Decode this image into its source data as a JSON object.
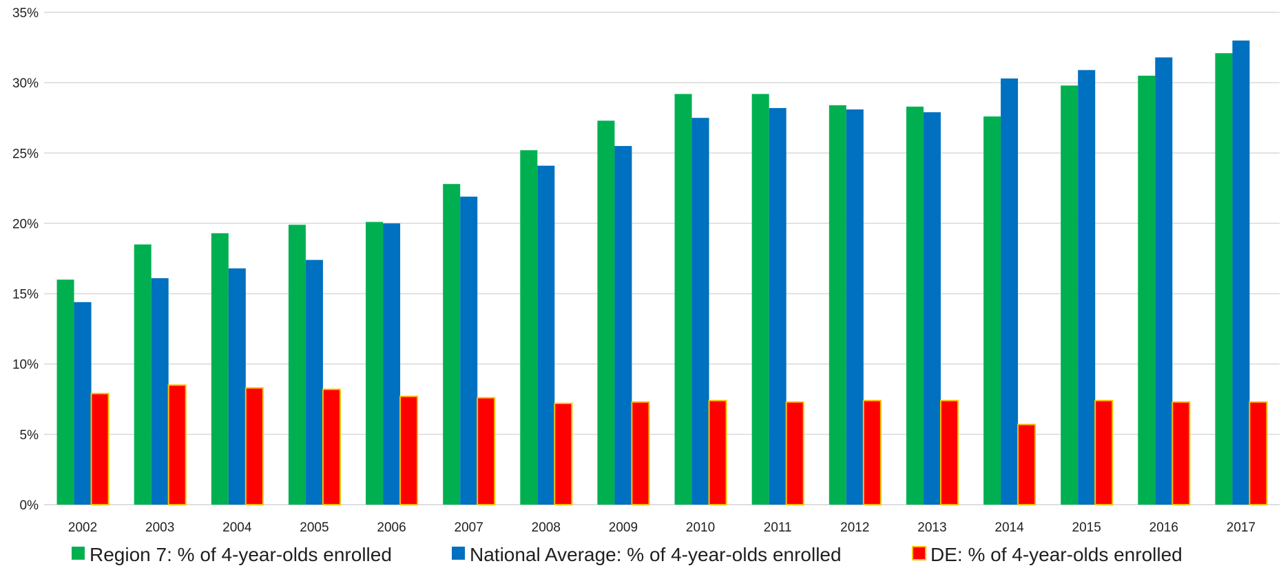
{
  "chart_data": {
    "type": "bar",
    "title": "",
    "xlabel": "",
    "ylabel": "",
    "categories": [
      "2002",
      "2003",
      "2004",
      "2005",
      "2006",
      "2007",
      "2008",
      "2009",
      "2010",
      "2011",
      "2012",
      "2013",
      "2014",
      "2015",
      "2016",
      "2017"
    ],
    "series": [
      {
        "name": "Region 7: % of 4-year-olds enrolled",
        "color": "#00b050",
        "values": [
          16.0,
          18.5,
          19.3,
          19.9,
          20.1,
          22.8,
          25.2,
          27.3,
          29.2,
          29.2,
          28.4,
          28.3,
          27.6,
          29.8,
          30.5,
          32.1
        ]
      },
      {
        "name": "National Average: % of 4-year-olds enrolled",
        "color": "#0070c0",
        "values": [
          14.4,
          16.1,
          16.8,
          17.4,
          20.0,
          21.9,
          24.1,
          25.5,
          27.5,
          28.2,
          28.1,
          27.9,
          30.3,
          30.9,
          31.8,
          33.0
        ]
      },
      {
        "name": "DE: % of 4-year-olds enrolled",
        "color": "#ff0000",
        "border_color": "#ffc000",
        "values": [
          7.9,
          8.5,
          8.3,
          8.2,
          7.7,
          7.6,
          7.2,
          7.3,
          7.4,
          7.3,
          7.4,
          7.4,
          5.7,
          7.4,
          7.3,
          7.3
        ]
      }
    ],
    "ylim": [
      0,
      35
    ],
    "yticks": [
      "0%",
      "5%",
      "10%",
      "15%",
      "20%",
      "25%",
      "30%",
      "35%"
    ],
    "ytick_values": [
      0,
      5,
      10,
      15,
      20,
      25,
      30,
      35
    ],
    "grid": true,
    "gridline_color": "#d9d9d9",
    "legend_position": "bottom"
  }
}
